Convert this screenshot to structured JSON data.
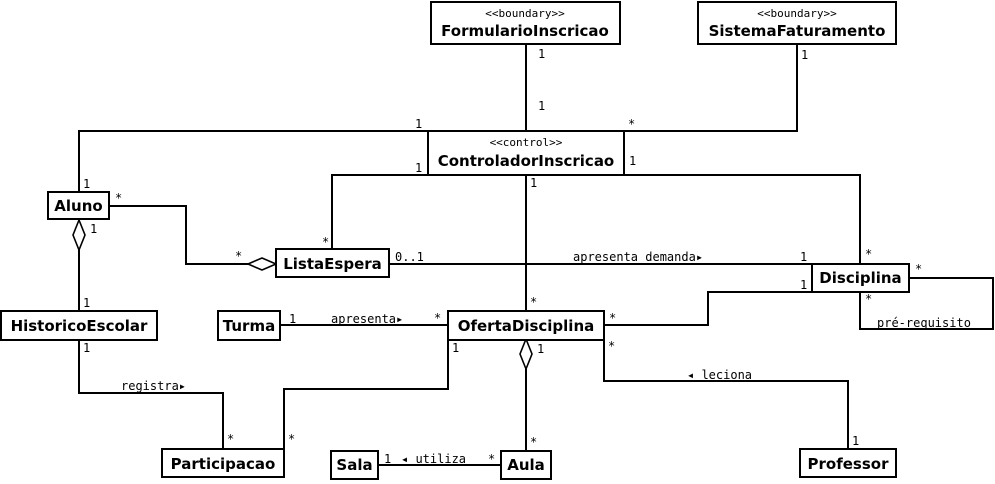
{
  "classes": {
    "formulario": {
      "stereotype": "<<boundary>>",
      "name": "FormularioInscricao"
    },
    "faturamento": {
      "stereotype": "<<boundary>>",
      "name": "SistemaFaturamento"
    },
    "controlador": {
      "stereotype": "<<control>>",
      "name": "ControladorInscricao"
    },
    "aluno": {
      "name": "Aluno"
    },
    "lista_espera": {
      "name": "ListaEspera"
    },
    "disciplina": {
      "name": "Disciplina"
    },
    "historico": {
      "name": "HistoricoEscolar"
    },
    "turma": {
      "name": "Turma"
    },
    "oferta": {
      "name": "OfertaDisciplina"
    },
    "participacao": {
      "name": "Participacao"
    },
    "sala": {
      "name": "Sala"
    },
    "aula": {
      "name": "Aula"
    },
    "professor": {
      "name": "Professor"
    }
  },
  "multiplicities": {
    "form_top": "1",
    "form_ctrl": "1",
    "fat_top": "1",
    "fat_ctrl": "*",
    "aluno_ctrl_ctrl": "1",
    "aluno_ctrl_aluno": "1",
    "ctrl_lista": "1",
    "lista_ctrl": "*",
    "ctrl_disc": "1",
    "disc_ctrl": "*",
    "ctrl_oferta": "1",
    "oferta_ctrl": "*",
    "aluno_lista_aluno": "*",
    "aluno_lista_lista": "*",
    "lista_disc_lista": "0..1",
    "lista_disc_disc": "1",
    "aluno_hist_aluno": "1",
    "aluno_hist_hist": "1",
    "disc_self_a": "*",
    "disc_self_b": "*",
    "disc_oferta_disc": "1",
    "disc_oferta_oferta": "*",
    "turma_oferta_turma": "1",
    "turma_oferta_oferta": "*",
    "hist_part_hist": "1",
    "hist_part_part": "*",
    "oferta_part_oferta": "1",
    "oferta_part_part": "*",
    "oferta_aula_oferta": "1",
    "oferta_aula_aula": "*",
    "oferta_prof_oferta": "*",
    "oferta_prof_prof": "1",
    "sala_aula_sala": "1",
    "sala_aula_aula": "*"
  },
  "labels": {
    "apresenta_demanda": "apresenta demanda▸",
    "pre_requisito": "pré-requisito",
    "apresenta": "apresenta▸",
    "registra": "registra▸",
    "leciona": "◂ leciona",
    "utiliza": "◂ utiliza"
  }
}
